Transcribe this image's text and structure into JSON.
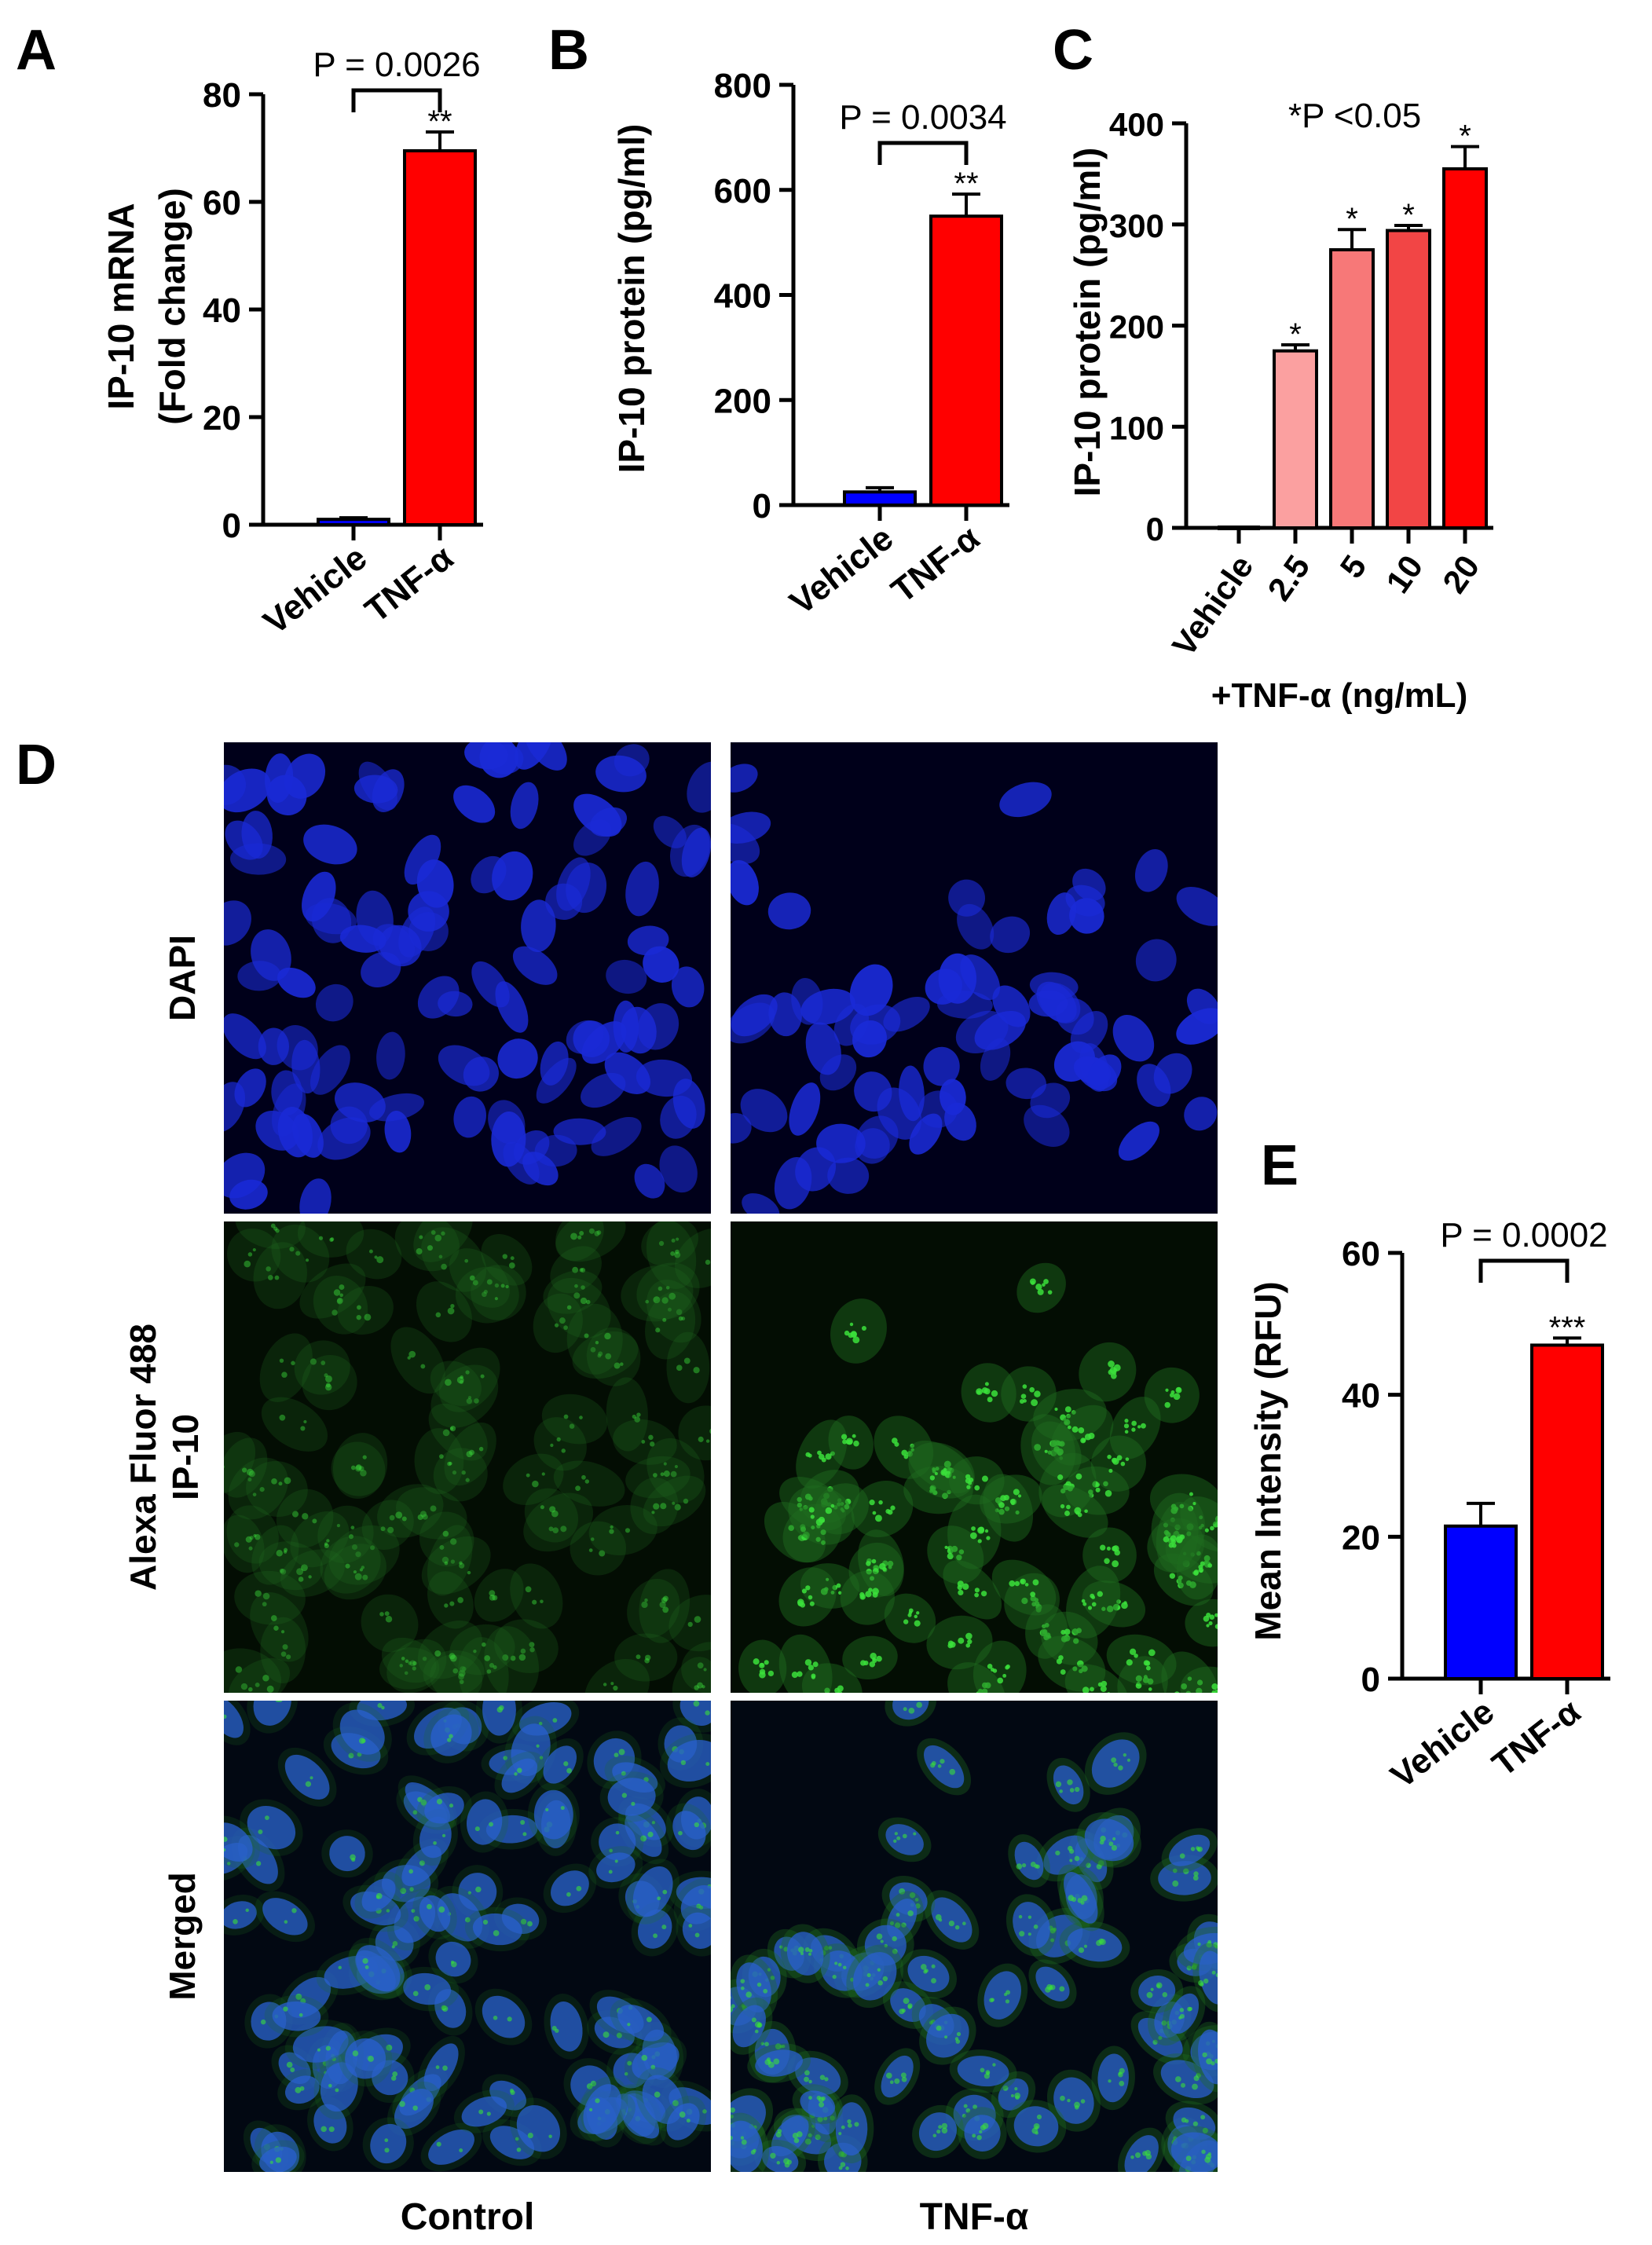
{
  "colors": {
    "vehicle": "#0000ff",
    "tnf": "#ff0000",
    "dose_2_5": "#fba0a0",
    "dose_5": "#f77878",
    "dose_10": "#f24545",
    "dose_20": "#ff0000",
    "dapi_bg": "#00001a",
    "dapi_nucleus": "#1a2ad6",
    "alexa_bg": "#030d03",
    "alexa_cell": "#1f6d1f",
    "alexa_dot": "#3be03b",
    "merged_bg": "#020812",
    "merged_nucleus": "#2a5fd0"
  },
  "panels": {
    "A": {
      "letter": "A"
    },
    "B": {
      "letter": "B"
    },
    "C": {
      "letter": "C"
    },
    "D": {
      "letter": "D",
      "row_labels": [
        "DAPI",
        "Alexa Fluor 488",
        "IP-10",
        "Merged"
      ],
      "col_labels": [
        "Control",
        "TNF-α"
      ]
    },
    "E": {
      "letter": "E"
    }
  },
  "chart_data": [
    {
      "panel": "A",
      "type": "bar",
      "categories": [
        "Vehicle",
        "TNF-α"
      ],
      "values": [
        1,
        69.5
      ],
      "errors": [
        0.3,
        3.5
      ],
      "ylabel": [
        "IP-10 mRNA",
        "(Fold change)"
      ],
      "ylim": [
        0,
        80
      ],
      "yticks": [
        "0",
        "20",
        "40",
        "60",
        "80"
      ],
      "significance": [
        "",
        "**"
      ],
      "pvalue": "P = 0.0026"
    },
    {
      "panel": "B",
      "type": "bar",
      "categories": [
        "Vehicle",
        "TNF-α"
      ],
      "values": [
        25,
        550
      ],
      "errors": [
        8,
        42
      ],
      "ylabel": "IP-10 protein (pg/ml)",
      "ylim": [
        0,
        800
      ],
      "yticks": [
        "0",
        "200",
        "400",
        "600",
        "800"
      ],
      "significance": [
        "",
        "**"
      ],
      "pvalue": "P = 0.0034"
    },
    {
      "panel": "C",
      "type": "bar",
      "categories": [
        "Vehicle",
        "2.5",
        "5",
        "10",
        "20"
      ],
      "values": [
        0,
        175,
        275,
        294,
        355
      ],
      "errors": [
        0,
        6,
        20,
        5,
        22
      ],
      "ylabel": "IP-10 protein (pg/ml)",
      "xlabel": "+TNF-α (ng/mL)",
      "ylim": [
        0,
        400
      ],
      "yticks": [
        "0",
        "100",
        "200",
        "300",
        "400"
      ],
      "significance": [
        "",
        "*",
        "*",
        "*",
        "*"
      ],
      "annotation": "*P <0.05"
    },
    {
      "panel": "E",
      "type": "bar",
      "categories": [
        "Vehicle",
        "TNF-α"
      ],
      "values": [
        21.5,
        47
      ],
      "errors": [
        3.2,
        1.0
      ],
      "ylabel": "Mean Intensity  (RFU)",
      "ylim": [
        0,
        60
      ],
      "yticks": [
        "0",
        "20",
        "40",
        "60"
      ],
      "significance": [
        "",
        "***"
      ],
      "pvalue": "P = 0.0002"
    }
  ]
}
